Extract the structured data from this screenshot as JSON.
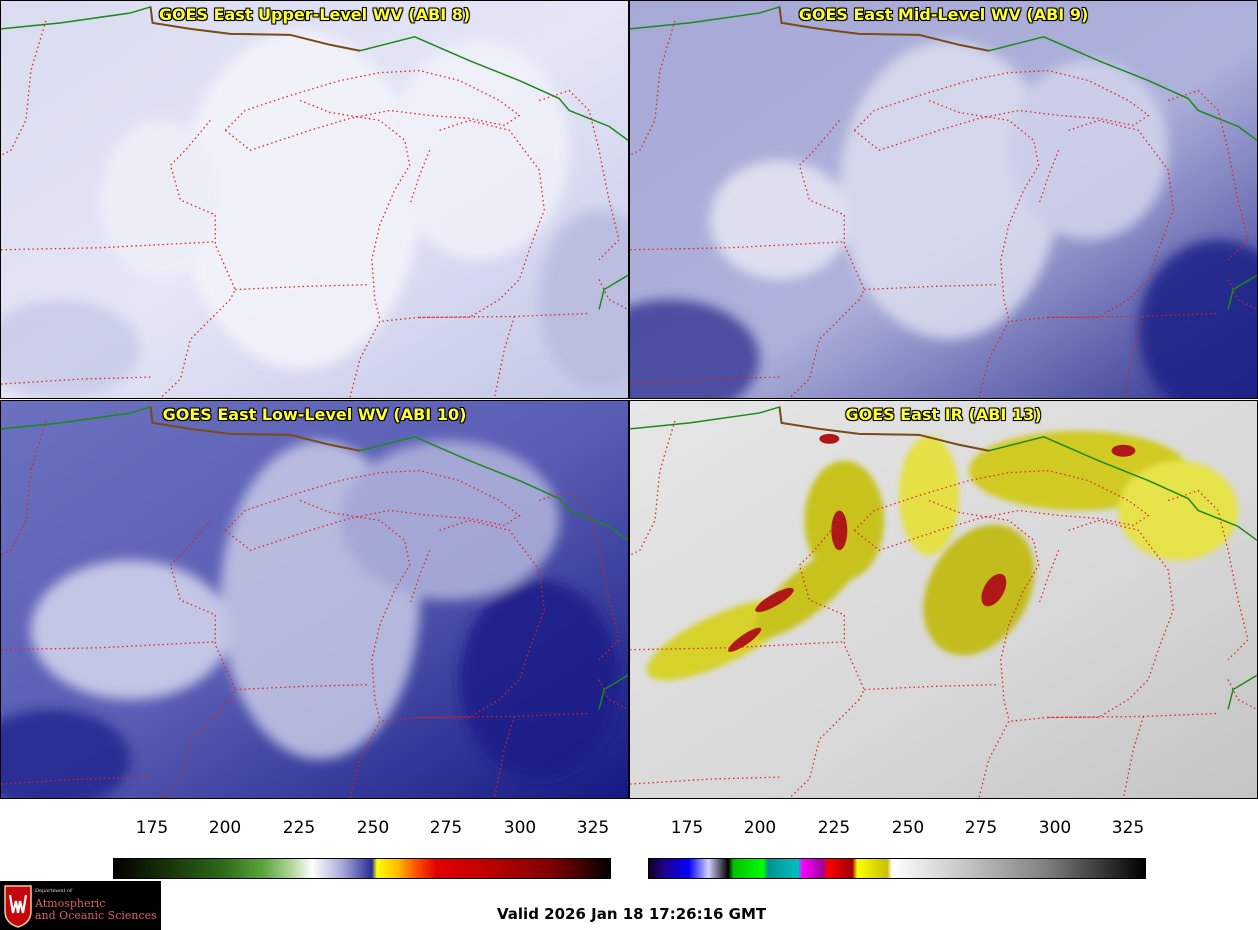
{
  "panels": [
    {
      "title": "GOES East Upper-Level WV (ABI 8)"
    },
    {
      "title": "GOES East Mid-Level WV (ABI 9)"
    },
    {
      "title": "GOES East Low-Level WV (ABI 10)"
    },
    {
      "title": "GOES East IR (ABI 13)"
    }
  ],
  "colorbars": [
    {
      "ticks": [
        "175",
        "200",
        "225",
        "250",
        "275",
        "300",
        "325"
      ]
    },
    {
      "ticks": [
        "175",
        "200",
        "225",
        "250",
        "275",
        "300",
        "325"
      ]
    }
  ],
  "valid_time": "Valid 2026 Jan 18 17:26:16 GMT",
  "logo": {
    "line1": "Department of",
    "line2": "Atmospheric",
    "line3": "and Oceanic Sciences"
  },
  "colors": {
    "state_borders": "#e0201f",
    "country_border": "#1a8a1a",
    "title_text": "#ffff33"
  }
}
